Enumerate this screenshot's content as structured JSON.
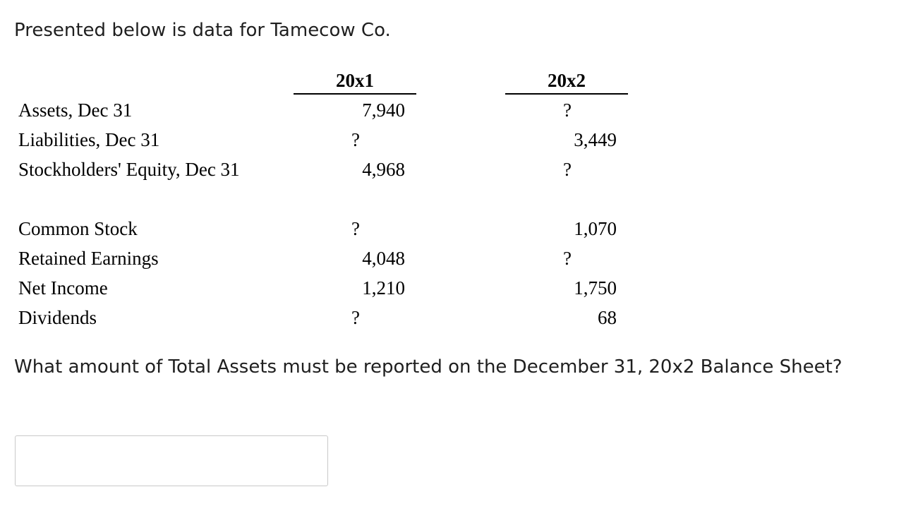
{
  "intro_text": "Presented below is data for Tamecow Co.",
  "table": {
    "headers": [
      "20x1",
      "20x2"
    ],
    "rows": [
      {
        "label": "Assets, Dec 31",
        "y1": "7,940",
        "y2": "?"
      },
      {
        "label": "Liabilities, Dec 31",
        "y1": "?",
        "y2": "3,449"
      },
      {
        "label": "Stockholders' Equity, Dec 31",
        "y1": "4,968",
        "y2": "?"
      },
      {
        "label": "Common Stock",
        "y1": "?",
        "y2": "1,070"
      },
      {
        "label": "Retained Earnings",
        "y1": "4,048",
        "y2": "?"
      },
      {
        "label": "Net Income",
        "y1": "1,210",
        "y2": "1,750"
      },
      {
        "label": "Dividends",
        "y1": "?",
        "y2": "68"
      }
    ]
  },
  "question_text": "What amount of Total Assets must be reported on the December 31, 20x2 Balance Sheet?",
  "answer": {
    "value": ""
  }
}
